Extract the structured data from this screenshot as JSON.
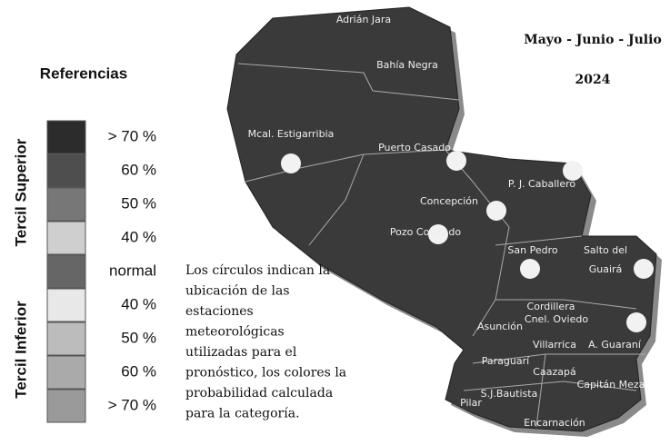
{
  "header": {
    "period": "Mayo - Junio - Julio",
    "year": "2024"
  },
  "legend": {
    "title": "Referencias",
    "upper": "Tercil Superior",
    "lower": "Tercil Inferior",
    "items": [
      {
        "label": "> 70 %",
        "color": "#2c2c2c"
      },
      {
        "label": "60 %",
        "color": "#4e4e4e"
      },
      {
        "label": "50 %",
        "color": "#777777"
      },
      {
        "label": "40 %",
        "color": "#cfcfcf"
      },
      {
        "label": "normal",
        "color": "#666666"
      },
      {
        "label": "40  %",
        "color": "#e8e8e8"
      },
      {
        "label": "50  %",
        "color": "#bcbcbc"
      },
      {
        "label": "60 %",
        "color": "#aaaaaa"
      },
      {
        "label": "> 70 %",
        "color": "#9a9a9a"
      }
    ]
  },
  "note": {
    "lines": [
      "Los círculos indican la",
      "ubicación de las",
      "estaciones",
      "meteorológicas",
      "utilizadas para el",
      "pronóstico, los colores la",
      "probabilidad calculada",
      "para la categoría."
    ]
  },
  "stations": [
    "Adrián Jara",
    "Bahía Negra",
    "Mcal. Estigarribia",
    "Puerto Casado",
    "P. J. Caballero",
    "Concepción",
    "Pozo Colorado",
    "San Pedro",
    "Salto del",
    "Guairá",
    "Cordillera",
    "Cnel. Oviedo",
    "Asunción",
    "Villarrica",
    "A. Guaraní",
    "Paraguarí",
    "Caazapá",
    "Capitán Meza",
    "S.J.Bautista",
    "Pilar",
    "Encarnación"
  ]
}
